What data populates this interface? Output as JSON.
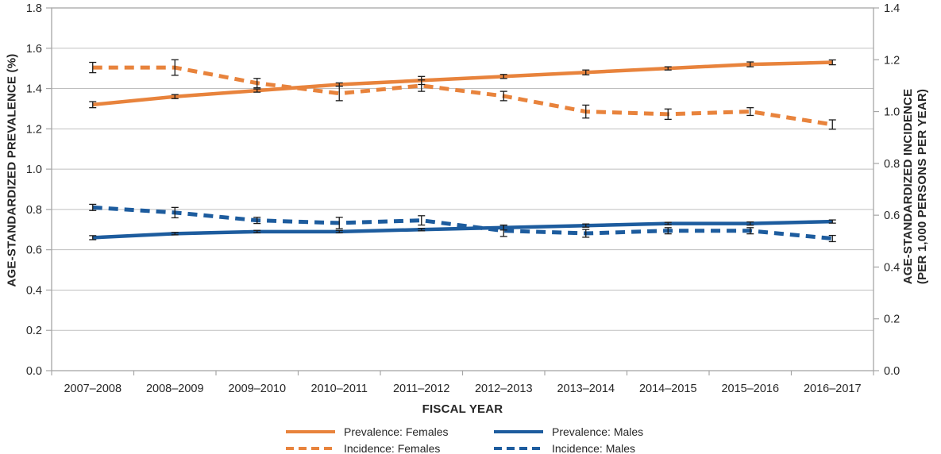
{
  "chart_data": {
    "type": "line",
    "title": "",
    "x_axis": {
      "label": "FISCAL YEAR",
      "categories": [
        "2007–2008",
        "2008–2009",
        "2009–2010",
        "2010–2011",
        "2011–2012",
        "2012–2013",
        "2013–2014",
        "2014–2015",
        "2015–2016",
        "2016–2017"
      ]
    },
    "y_left": {
      "label": "AGE-STANDARDIZED PREVALENCE (%)",
      "min": 0.0,
      "max": 1.8,
      "ticks": [
        "1.8",
        "1.6",
        "1.4",
        "1.2",
        "1.0",
        "0.8",
        "0.6",
        "0.4",
        "0.2",
        "0.0"
      ]
    },
    "y_right": {
      "label_line1": "AGE-STANDARDIZED INCIDENCE",
      "label_line2": "(PER 1,000 PERSONS PER YEAR)",
      "min": 0.0,
      "max": 1.4,
      "ticks": [
        "1.4",
        "1.2",
        "1.0",
        "0.8",
        "0.6",
        "0.4",
        "0.2",
        "0.0"
      ]
    },
    "grid": true,
    "legend_position": "bottom",
    "colors": {
      "orange": "#E8833C",
      "blue": "#1D5C9E",
      "gridline": "#BFBFBF",
      "axis_line": "#A6A6A6",
      "error_bar": "#1A1A1A",
      "text": "#262626"
    },
    "series": [
      {
        "name": "Prevalence: Females",
        "axis": "left",
        "style": "solid",
        "color": "#E8833C",
        "values": [
          1.32,
          1.36,
          1.39,
          1.42,
          1.44,
          1.46,
          1.48,
          1.5,
          1.52,
          1.53
        ],
        "errors": [
          0.015,
          0.01,
          0.008,
          0.008,
          0.02,
          0.01,
          0.012,
          0.008,
          0.012,
          0.012
        ]
      },
      {
        "name": "Incidence: Females",
        "axis": "right",
        "style": "dashed",
        "color": "#E8833C",
        "values": [
          1.17,
          1.17,
          1.11,
          1.07,
          1.1,
          1.06,
          1.0,
          0.99,
          1.0,
          0.95
        ],
        "errors": [
          0.02,
          0.03,
          0.018,
          0.028,
          0.022,
          0.018,
          0.025,
          0.02,
          0.015,
          0.018
        ]
      },
      {
        "name": "Prevalence: Males",
        "axis": "left",
        "style": "solid",
        "color": "#1D5C9E",
        "values": [
          0.66,
          0.68,
          0.69,
          0.69,
          0.7,
          0.71,
          0.72,
          0.73,
          0.73,
          0.74
        ],
        "errors": [
          0.01,
          0.006,
          0.006,
          0.006,
          0.006,
          0.012,
          0.008,
          0.006,
          0.008,
          0.008
        ]
      },
      {
        "name": "Incidence: Males",
        "axis": "right",
        "style": "dashed",
        "color": "#1D5C9E",
        "values": [
          0.63,
          0.61,
          0.58,
          0.57,
          0.58,
          0.54,
          0.53,
          0.54,
          0.54,
          0.51
        ],
        "errors": [
          0.012,
          0.02,
          0.012,
          0.022,
          0.018,
          0.022,
          0.015,
          0.012,
          0.012,
          0.012
        ]
      }
    ]
  }
}
